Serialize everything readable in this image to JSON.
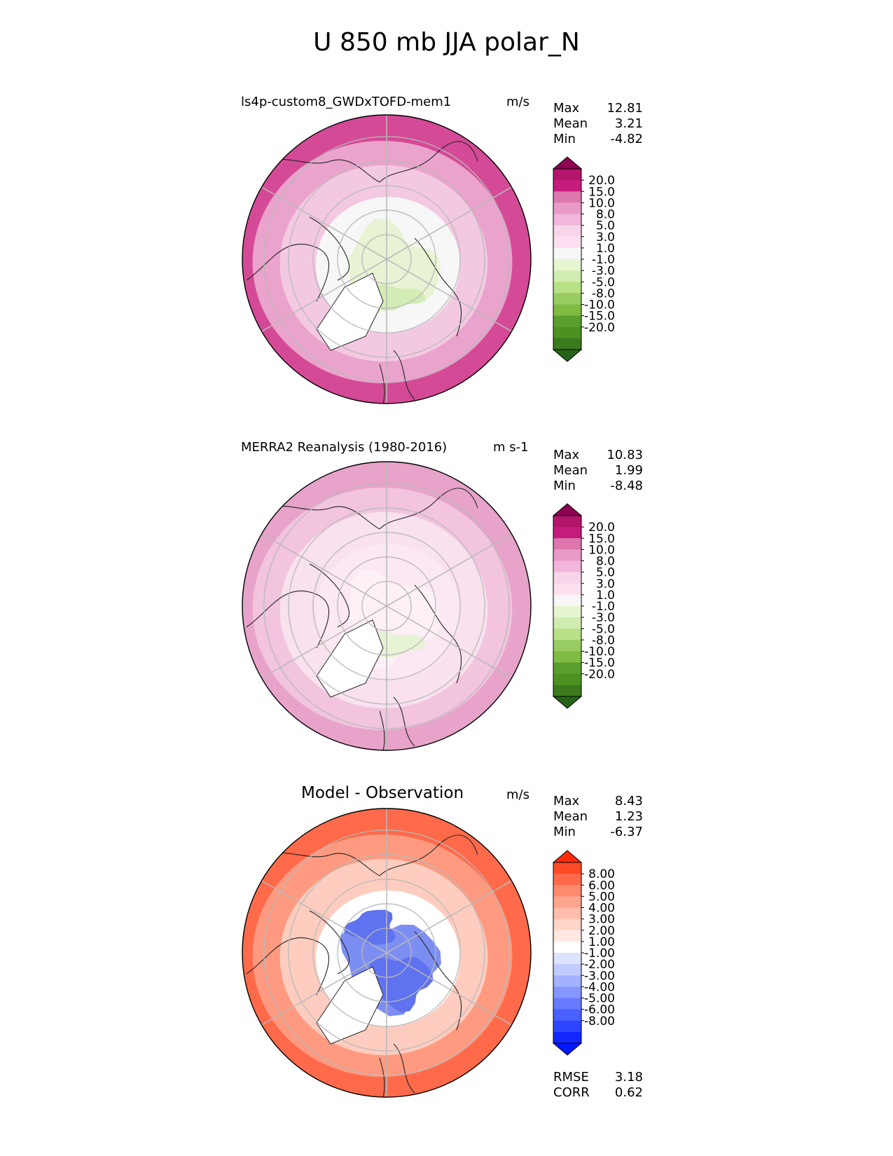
{
  "figure_title": "U 850 mb JJA polar_N",
  "chart_data": [
    {
      "type": "heatmap",
      "projection": "north-polar-stereographic",
      "title": "ls4p-custom8_GWDxTOFD-mem1",
      "units": "m/s",
      "stats": [
        {
          "label": "Max",
          "value": "12.81"
        },
        {
          "label": "Mean",
          "value": "3.21"
        },
        {
          "label": "Min",
          "value": "-4.82"
        }
      ],
      "colorbar": {
        "labels": [
          "20.0",
          "15.0",
          "10.0",
          "8.0",
          "5.0",
          "3.0",
          "1.0",
          "-1.0",
          "-3.0",
          "-5.0",
          "-8.0",
          "-10.0",
          "-15.0",
          "-20.0"
        ],
        "colors": [
          "#8e0152",
          "#b3156a",
          "#c51b7d",
          "#de77ae",
          "#e89cc5",
          "#f1b6da",
          "#f7d5e9",
          "#fde0ef",
          "#f7f7f7",
          "#e6f5d0",
          "#d0ecb0",
          "#b8e186",
          "#98cc63",
          "#7fbc41",
          "#5a9e2d",
          "#4d9221",
          "#3b7a1d",
          "#276419"
        ]
      }
    },
    {
      "type": "heatmap",
      "projection": "north-polar-stereographic",
      "title": "MERRA2 Reanalysis (1980-2016)",
      "units": "m s-1",
      "stats": [
        {
          "label": "Max",
          "value": "10.83"
        },
        {
          "label": "Mean",
          "value": "1.99"
        },
        {
          "label": "Min",
          "value": "-8.48"
        }
      ],
      "colorbar": {
        "labels": [
          "20.0",
          "15.0",
          "10.0",
          "8.0",
          "5.0",
          "3.0",
          "1.0",
          "-1.0",
          "-3.0",
          "-5.0",
          "-8.0",
          "-10.0",
          "-15.0",
          "-20.0"
        ],
        "colors": [
          "#8e0152",
          "#b3156a",
          "#c51b7d",
          "#de77ae",
          "#e89cc5",
          "#f1b6da",
          "#f7d5e9",
          "#fde0ef",
          "#f7f7f7",
          "#e6f5d0",
          "#d0ecb0",
          "#b8e186",
          "#98cc63",
          "#7fbc41",
          "#5a9e2d",
          "#4d9221",
          "#3b7a1d",
          "#276419"
        ]
      }
    },
    {
      "type": "heatmap",
      "projection": "north-polar-stereographic",
      "title": "Model - Observation",
      "units": "m/s",
      "stats": [
        {
          "label": "Max",
          "value": "8.43"
        },
        {
          "label": "Mean",
          "value": "1.23"
        },
        {
          "label": "Min",
          "value": "-6.37"
        }
      ],
      "metrics": [
        {
          "label": "RMSE",
          "value": "3.18"
        },
        {
          "label": "CORR",
          "value": "0.62"
        }
      ],
      "colorbar": {
        "labels": [
          "8.00",
          "6.00",
          "5.00",
          "4.00",
          "3.00",
          "2.00",
          "1.00",
          "-1.00",
          "-2.00",
          "-3.00",
          "-4.00",
          "-5.00",
          "-6.00",
          "-8.00"
        ],
        "colors": [
          "#ff2a0a",
          "#ff4a26",
          "#ff6a4a",
          "#ff8a6e",
          "#ffa48e",
          "#ffbcaa",
          "#ffd4c8",
          "#ffe8e2",
          "#ffffff",
          "#dde3ff",
          "#c1cbff",
          "#a3b1ff",
          "#8596ff",
          "#667bff",
          "#4a60ff",
          "#2e45ff",
          "#1228ff",
          "#0018ff"
        ]
      }
    }
  ],
  "map_colors": {
    "p1": {
      "outer": "#d44a96",
      "ring2": "#eaa3cc",
      "ring3": "#f3c9e1",
      "inner": "#f7f7f7",
      "center": "#e8f3d4",
      "green": "#d3ebb5",
      "land": "#ffffff"
    },
    "p2": {
      "outer": "#e7a3c9",
      "ring2": "#f2c4de",
      "ring3": "#f9e1ee",
      "inner": "#fbe8f2",
      "center": "#fdf0f6",
      "green": "#e6f3d4",
      "land": "#ffffff"
    },
    "p3": {
      "outer": "#ff6a4a",
      "ring2": "#ff9a80",
      "ring3": "#ffcdbf",
      "inner": "#ffffff",
      "center": "#7d8ef2",
      "blue": "#5f72ef",
      "land": "#ffffff"
    },
    "grid": "#b9b9b9",
    "coast": "#222222"
  }
}
